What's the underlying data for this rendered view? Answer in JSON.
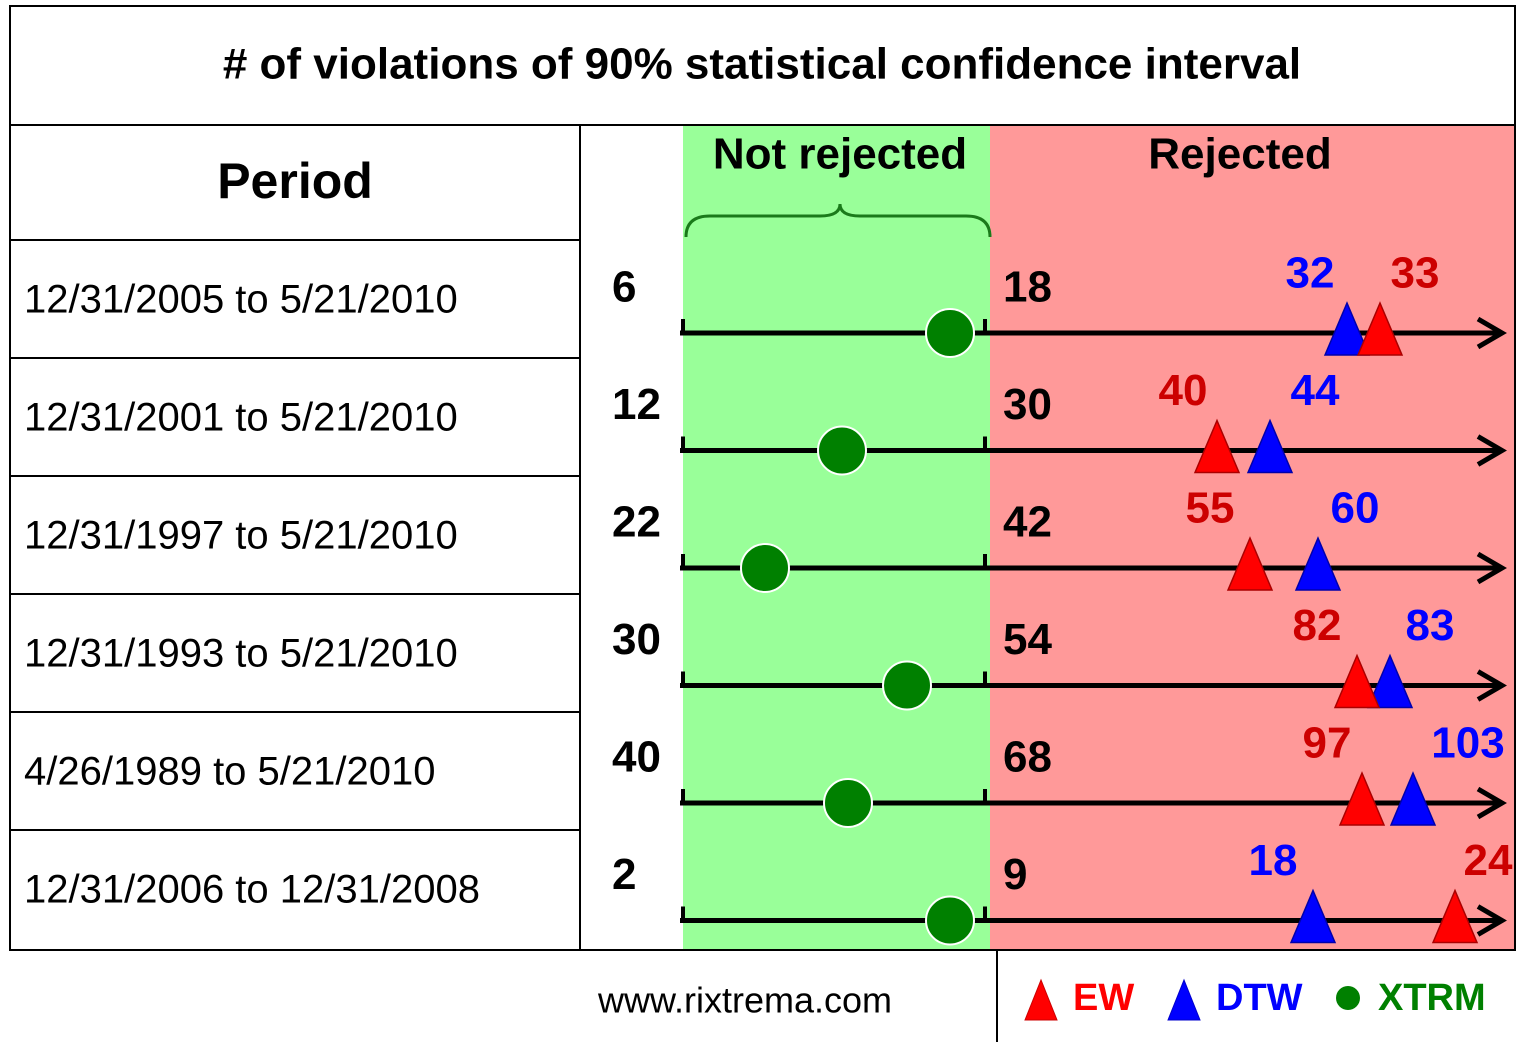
{
  "title": "# of violations of 90% statistical confidence interval",
  "header": {
    "period": "Period",
    "not_rejected": "Not rejected",
    "rejected": "Rejected"
  },
  "rows": [
    {
      "period": "12/31/2005 to 5/21/2010",
      "lower": 6,
      "upper": 18,
      "ew": 33,
      "dtw": 32
    },
    {
      "period": "12/31/2001 to 5/21/2010",
      "lower": 12,
      "upper": 30,
      "ew": 40,
      "dtw": 44
    },
    {
      "period": "12/31/1997 to 5/21/2010",
      "lower": 22,
      "upper": 42,
      "ew": 55,
      "dtw": 60
    },
    {
      "period": "12/31/1993 to 5/21/2010",
      "lower": 30,
      "upper": 54,
      "ew": 82,
      "dtw": 83
    },
    {
      "period": "4/26/1989 to 5/21/2010",
      "lower": 40,
      "upper": 68,
      "ew": 97,
      "dtw": 103
    },
    {
      "period": "12/31/2006 to 12/31/2008",
      "lower": 2,
      "upper": 9,
      "ew": 24,
      "dtw": 18
    }
  ],
  "legend": {
    "ew": "EW",
    "dtw": "DTW",
    "xtrm": "XTRM"
  },
  "footer": "www.rixtrema.com"
}
